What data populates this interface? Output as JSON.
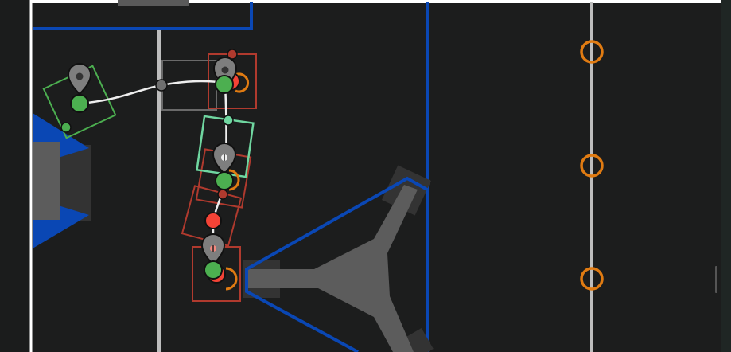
{
  "colors": {
    "field_background": "#1c1d1d",
    "field_border": "#ffffff",
    "field_line": "#bdbdbd",
    "alliance_blue": "#0a47b4",
    "structure_gray": "#5c5c5c",
    "structure_dark": "#333333",
    "waypoint_gray": "#7e7e7e",
    "robot_start": "#4caf50",
    "robot_end": "#f44336",
    "event_marker_red": "#b03a2e",
    "selected_frame": "#6fd6a0",
    "target_orange": "#e07b12",
    "path_line": "#eeeeee"
  },
  "icons": {
    "waypoint": "map-pin-icon",
    "rotation_target": "rotation-target-icon",
    "target": "target-ring-icon"
  },
  "field": {
    "scrollbar": "vertical-scroll-handle"
  }
}
